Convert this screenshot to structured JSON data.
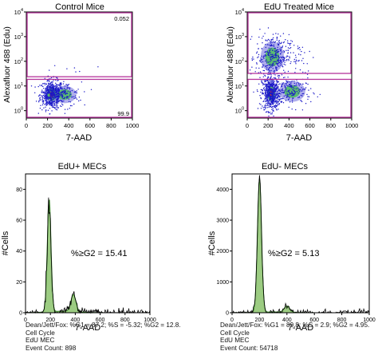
{
  "chart_data": [
    {
      "type": "scatter",
      "title": "Control Mice",
      "xlabel": "7-AAD",
      "ylabel": "Alexafluor 488 (Edu)",
      "xlim": [
        0,
        1000
      ],
      "ylim": [
        0.5,
        10000
      ],
      "x_scale": "linear",
      "y_scale": "log",
      "x_ticks": [
        "0",
        "200",
        "400",
        "600",
        "800",
        "1000"
      ],
      "y_ticks": [
        "10^0",
        "10^1",
        "10^2",
        "10^3",
        "10^4"
      ],
      "gates": [
        {
          "label": "0.052",
          "x_range": [
            0,
            1000
          ],
          "y_range": [
            22,
            10000
          ]
        },
        {
          "label": "99.9",
          "x_range": [
            0,
            1000
          ],
          "y_range": [
            0.5,
            20
          ]
        }
      ],
      "populations": [
        {
          "x": 240,
          "y": 4.5,
          "sx": 55,
          "sy": 0.3,
          "n": 500
        },
        {
          "x": 360,
          "y": 4.5,
          "sx": 80,
          "sy": 0.25,
          "n": 120
        },
        {
          "x": 420,
          "y": 60,
          "sx": 150,
          "sy": 0.35,
          "n": 6
        }
      ],
      "style": {
        "gate_color": "#b5359c",
        "hot": "#ff2a00",
        "mid": "#22c422",
        "cold": "#1a18c8"
      }
    },
    {
      "type": "scatter",
      "title": "EdU Treated Mice",
      "xlabel": "7-AAD",
      "ylabel": "Alexafluor 488 (Edu)",
      "xlim": [
        0,
        1000
      ],
      "ylim": [
        0.5,
        10000
      ],
      "x_scale": "linear",
      "y_scale": "log",
      "x_ticks": [
        "0",
        "200",
        "400",
        "600",
        "800",
        "1000"
      ],
      "y_ticks": [
        "10^0",
        "10^1",
        "10^2",
        "10^3",
        "10^4"
      ],
      "gates": [
        {
          "label": "",
          "x_range": [
            0,
            1000
          ],
          "y_range": [
            30,
            10000
          ]
        },
        {
          "label": "",
          "x_range": [
            0,
            1000
          ],
          "y_range": [
            0.5,
            20
          ]
        }
      ],
      "populations": [
        {
          "x": 230,
          "y": 5,
          "sx": 45,
          "sy": 0.35,
          "n": 550
        },
        {
          "x": 430,
          "y": 6,
          "sx": 90,
          "sy": 0.3,
          "n": 180
        },
        {
          "x": 240,
          "y": 150,
          "sx": 80,
          "sy": 0.45,
          "n": 320
        },
        {
          "x": 420,
          "y": 200,
          "sx": 120,
          "sy": 0.4,
          "n": 60
        }
      ],
      "style": {
        "gate_color": "#b5359c",
        "hot": "#ff2a00",
        "mid": "#22c422",
        "cold": "#1a18c8"
      }
    },
    {
      "type": "area",
      "title": "EdU+ MECs",
      "xlabel": "7-AAD",
      "ylabel": "#Cells",
      "xlim": [
        0,
        1000
      ],
      "ylim": [
        0,
        90
      ],
      "x_ticks": [
        "0",
        "200",
        "400",
        "600",
        "800",
        "1000"
      ],
      "y_ticks": [
        "0",
        "20",
        "40",
        "60",
        "80"
      ],
      "annotation": "%≥G2 = 15.41",
      "fit_components": [
        {
          "mean": 190,
          "sd": 15,
          "height": 73
        },
        {
          "mean": 385,
          "sd": 20,
          "height": 11
        },
        {
          "mean": 300,
          "sd": 120,
          "height": 1
        }
      ],
      "stats": [
        "Dean/Jett/Fox: %G1 = 87.2; %S = -5.32; %G2 = 12.8.",
        "Cell Cycle",
        "EdU MEC",
        "Event Count: 898"
      ]
    },
    {
      "type": "area",
      "title": "EdU- MECs",
      "xlabel": "7-AAD",
      "ylabel": "#Cells",
      "xlim": [
        0,
        1000
      ],
      "ylim": [
        0,
        4500
      ],
      "x_ticks": [
        "0",
        "200",
        "400",
        "600",
        "800",
        "1000"
      ],
      "y_ticks": [
        "0",
        "1000",
        "2000",
        "3000",
        "4000"
      ],
      "annotation": "%≥G2 = 5.13",
      "fit_components": [
        {
          "mean": 200,
          "sd": 15,
          "height": 4330
        },
        {
          "mean": 400,
          "sd": 20,
          "height": 200
        },
        {
          "mean": 300,
          "sd": 120,
          "height": 25
        }
      ],
      "stats": [
        "Dean/Jett/Fox: %G1 = 89.8; %S = 2.9; %G2 = 4.95.",
        "Cell Cycle",
        "EdU MEC",
        "Event Count: 54718"
      ]
    }
  ]
}
